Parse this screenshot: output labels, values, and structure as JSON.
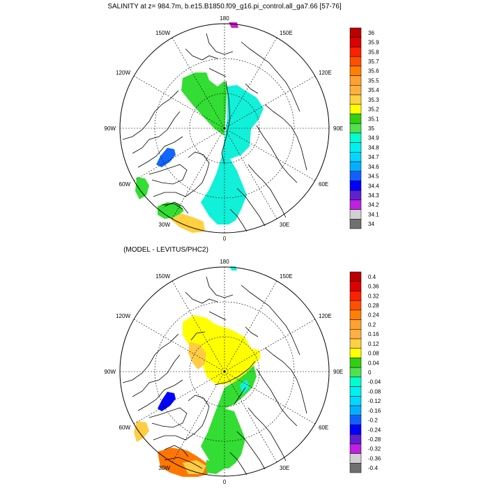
{
  "top_panel": {
    "title": "SALINITY at z= 984.7m, b.e15.B1850.f09_g16.pi_control.all_ga7.66 [57-76]",
    "lon_labels": {
      "deg180": "180",
      "e150": "150E",
      "e120": "120E",
      "e90": "90E",
      "e60": "60E",
      "e30": "30E",
      "deg0": "0",
      "w30": "30W",
      "w60": "60W",
      "w90": "90W",
      "w120": "120W",
      "w150": "150W"
    },
    "colorbar": {
      "labels": [
        "36",
        "35.9",
        "35.8",
        "35.7",
        "35.6",
        "35.5",
        "35.4",
        "35.3",
        "35.2",
        "35.1",
        "35",
        "34.9",
        "34.8",
        "34.7",
        "34.6",
        "34.5",
        "34.4",
        "34.3",
        "34.2",
        "34.1",
        "34"
      ],
      "colors": [
        "#bb0000",
        "#dd0000",
        "#ff2000",
        "#ff5000",
        "#ff8000",
        "#ffa030",
        "#ffb040",
        "#ffd040",
        "#ffff00",
        "#30d010",
        "#50e050",
        "#00ffd0",
        "#00f0f0",
        "#00d8ff",
        "#00b0ff",
        "#1060ff",
        "#0000ff",
        "#6020d0",
        "#c020e0",
        "#d0d0d0",
        "#707070"
      ]
    }
  },
  "bottom_panel": {
    "title": "(MODEL - LEVITUS/PHC2)",
    "lon_labels": {
      "deg180": "180",
      "e150": "150E",
      "e120": "120E",
      "e90": "90E",
      "e60": "60E",
      "e30": "30E",
      "deg0": "0",
      "w30": "30W",
      "w60": "60W",
      "w90": "90W",
      "w120": "120W",
      "w150": "150W"
    },
    "colorbar": {
      "labels": [
        "0.4",
        "0.36",
        "0.32",
        "0.28",
        "0.24",
        "0.2",
        "0.16",
        "0.12",
        "0.08",
        "0.04",
        "0",
        "-0.04",
        "-0.08",
        "-0.12",
        "-0.16",
        "-0.2",
        "-0.24",
        "-0.28",
        "-0.32",
        "-0.36",
        "-0.4"
      ],
      "colors": [
        "#bb0000",
        "#dd0000",
        "#ff2000",
        "#ff5000",
        "#ff8000",
        "#ffa030",
        "#ffb040",
        "#ffd040",
        "#ffff00",
        "#30d010",
        "#50e050",
        "#00ffd0",
        "#00f0f0",
        "#00d8ff",
        "#00b0ff",
        "#1060ff",
        "#0000ff",
        "#6020d0",
        "#c020e0",
        "#d0d0d0",
        "#707070"
      ]
    }
  },
  "colors": {
    "s_green": "#33dd33",
    "s_cyan": "#11f0d8",
    "s_blue": "#1166ff",
    "s_magenta": "#cc22cc",
    "s_yellow": "#ffd040",
    "s_orange": "#ff8000",
    "d_yellow": "#ffff00",
    "d_lightorange": "#ffcc44",
    "d_green": "#33dd33",
    "d_cyan": "#11f0d8",
    "d_blue": "#0000ff",
    "d_orange": "#ff7700"
  }
}
